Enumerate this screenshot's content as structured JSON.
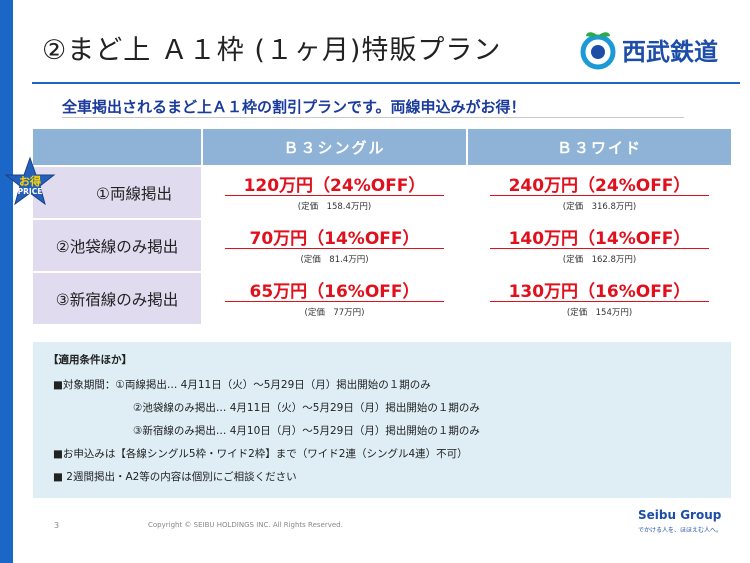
{
  "header": {
    "title": "②まど上 Ａ１枠 (１ヶ月)特販プラン",
    "brand_name": "西武鉄道",
    "brand_color": "#1c4ea8",
    "accent_bar_color": "#1a67c8"
  },
  "subtitle": "全車掲出されるまど上Ａ１枠の割引プランです。両線申込みがお得！",
  "badge": {
    "line1": "お得",
    "line2": "PRICE",
    "icon": "star-icon"
  },
  "table": {
    "columns": [
      "Ｂ３シングル",
      "Ｂ３ワイド"
    ],
    "rows": [
      {
        "label": "①両線掲出",
        "single": {
          "price": "120万円（24%OFF）",
          "teika": "(定価　158.4万円)"
        },
        "wide": {
          "price": "240万円（24%OFF）",
          "teika": "(定価　316.8万円)"
        }
      },
      {
        "label": "②池袋線のみ掲出",
        "single": {
          "price": "70万円（14%OFF）",
          "teika": "(定価　81.4万円)"
        },
        "wide": {
          "price": "140万円（14%OFF）",
          "teika": "(定価　162.8万円)"
        }
      },
      {
        "label": "③新宿線のみ掲出",
        "single": {
          "price": "65万円（16%OFF）",
          "teika": "(定価　77万円)"
        },
        "wide": {
          "price": "130万円（16%OFF）",
          "teika": "(定価　154万円)"
        }
      }
    ]
  },
  "conditions": {
    "heading": "【適用条件ほか】",
    "lines": [
      "■対象期間：①両線掲出… 4月11日（火）～5月29日（月）掲出開始の１期のみ",
      "②池袋線のみ掲出… 4月11日（火）～5月29日（月）掲出開始の１期のみ",
      "③新宿線のみ掲出… 4月10日（月）～5月29日（月）掲出開始の１期のみ",
      "■お申込みは【各線シングル5枠・ワイド2枠】まで（ワイド2連（シングル4連）不可）",
      "■ 2週間掲出・A2等の内容は個別にご相談ください"
    ]
  },
  "footer": {
    "page_number": "3",
    "copyright": "Copyright © SEIBU HOLDINGS INC. All Rights Reserved.",
    "group_logo": "Seibu Group",
    "group_tagline": "でかける人を、ほほえむ人へ。"
  },
  "colors": {
    "header_cell": "#8fb3d6",
    "row_label_bg": "#e1dbef",
    "price_red": "#e0101d",
    "conditions_bg": "#deeef4"
  }
}
